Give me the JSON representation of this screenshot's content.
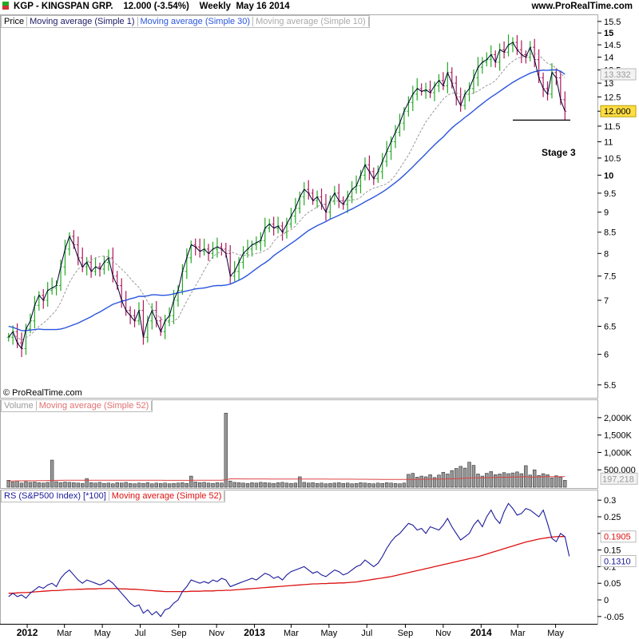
{
  "header": {
    "ticker": "KGP - KINGSPAN GRP.",
    "quote": "12.000 (-3.54%)",
    "period": "Weekly",
    "date": "May 16 2014",
    "site": "www.ProRealTime.com"
  },
  "watermark": "© ProRealTime.com",
  "colors": {
    "up": "#22aa22",
    "down": "#b0185a",
    "close_line": "#000033",
    "ma30": "#2a55dd",
    "ma10": "#999999",
    "rs": "#1a1a99",
    "rs_ma": "#dd1111",
    "volume_ma": "#dd4444",
    "price_flag": "#ffdd44"
  },
  "chart_data": [
    {
      "type": "line",
      "panel": "price",
      "legend": [
        "Price",
        "Moving average (Simple 1)",
        "Moving average (Simple 30)",
        "Moving average (Simple 10)"
      ],
      "yticks": [
        5.5,
        6,
        6.5,
        7,
        7.5,
        8,
        8.5,
        9,
        9.5,
        10,
        10.5,
        11,
        11.5,
        12,
        12.5,
        13,
        13.5,
        14,
        14.5,
        15,
        15.5
      ],
      "ytick_labels": [
        "5.5",
        "6",
        "6.5",
        "7",
        "7.5",
        "8",
        "8.5",
        "9",
        "9.5",
        "10",
        "10.5",
        "11",
        "11.5",
        "12",
        "12.5",
        "13",
        "13.5",
        "14",
        "14.5",
        "15",
        "15.5"
      ],
      "y_scale": "log",
      "ylim": [
        5.35,
        15.6
      ],
      "last_value": "12.000",
      "ma30_last": "13.332",
      "support_level": 11.7,
      "annotation": "Stage 3",
      "x_start": "2011-12-02",
      "x_step_days": 7,
      "close": [
        6.3,
        6.4,
        6.2,
        6.1,
        6.45,
        6.6,
        6.9,
        7.1,
        7.0,
        7.2,
        7.25,
        7.3,
        7.7,
        8.1,
        8.4,
        8.2,
        7.9,
        7.7,
        7.8,
        7.6,
        7.7,
        7.65,
        7.8,
        7.9,
        7.5,
        7.3,
        7.0,
        6.8,
        6.7,
        6.6,
        6.8,
        6.3,
        6.6,
        6.8,
        6.6,
        6.4,
        6.6,
        6.7,
        7.0,
        7.2,
        7.6,
        7.9,
        8.2,
        8.15,
        8.05,
        8.1,
        8.0,
        8.1,
        8.15,
        8.1,
        8.0,
        7.5,
        7.6,
        7.8,
        8.0,
        8.1,
        8.2,
        8.25,
        8.3,
        8.6,
        8.7,
        8.6,
        8.65,
        8.5,
        8.7,
        8.9,
        9.1,
        9.4,
        9.6,
        9.5,
        9.3,
        9.4,
        9.2,
        9.0,
        9.3,
        9.5,
        9.3,
        9.2,
        9.4,
        9.6,
        9.7,
        10.0,
        10.3,
        10.1,
        9.9,
        10.1,
        10.4,
        10.7,
        11.0,
        11.3,
        11.6,
        12.0,
        12.3,
        12.6,
        12.8,
        12.7,
        12.75,
        12.65,
        12.9,
        13.1,
        12.9,
        13.4,
        13.0,
        12.5,
        12.2,
        12.6,
        12.8,
        13.2,
        13.6,
        13.8,
        13.9,
        14.1,
        13.8,
        14.3,
        14.2,
        14.5,
        14.6,
        14.3,
        14.1,
        14.0,
        14.4,
        13.9,
        13.2,
        12.8,
        12.6,
        13.4,
        13.2,
        12.4,
        12.0
      ],
      "ma10": [
        6.3,
        6.35,
        6.3,
        6.25,
        6.29,
        6.34,
        6.41,
        6.5,
        6.56,
        6.63,
        6.72,
        6.81,
        6.96,
        7.16,
        7.36,
        7.52,
        7.65,
        7.73,
        7.81,
        7.85,
        7.9,
        7.93,
        7.94,
        7.92,
        7.83,
        7.74,
        7.65,
        7.56,
        7.45,
        7.35,
        7.26,
        7.12,
        6.97,
        6.83,
        6.74,
        6.64,
        6.6,
        6.57,
        6.6,
        6.65,
        6.82,
        6.98,
        7.14,
        7.29,
        7.45,
        7.62,
        7.79,
        7.93,
        8.0,
        8.05,
        8.09,
        8.05,
        8.0,
        7.97,
        7.96,
        7.96,
        7.98,
        8.0,
        8.02,
        8.07,
        8.12,
        8.28,
        8.39,
        8.44,
        8.51,
        8.56,
        8.65,
        8.77,
        8.9,
        9.0,
        9.06,
        9.14,
        9.2,
        9.23,
        9.27,
        9.28,
        9.29,
        9.3,
        9.3,
        9.32,
        9.33,
        9.39,
        9.5,
        9.58,
        9.64,
        9.67,
        9.71,
        9.76,
        9.86,
        10.0,
        10.19,
        10.39,
        10.59,
        10.84,
        11.12,
        11.38,
        11.64,
        11.84,
        12.04,
        12.23,
        12.42,
        12.56,
        12.63,
        12.65,
        12.59,
        12.58,
        12.59,
        12.64,
        12.71,
        12.81,
        12.91,
        12.98,
        13.09,
        13.3,
        13.5,
        13.7,
        13.84,
        13.95,
        14.0,
        14.04,
        14.13,
        14.15,
        14.09,
        13.91,
        13.76,
        13.68,
        13.57,
        13.37,
        13.2
      ],
      "ma30": [
        6.5,
        6.48,
        6.45,
        6.42,
        6.42,
        6.43,
        6.44,
        6.45,
        6.44,
        6.44,
        6.44,
        6.44,
        6.45,
        6.47,
        6.5,
        6.53,
        6.56,
        6.6,
        6.64,
        6.68,
        6.73,
        6.77,
        6.82,
        6.87,
        6.92,
        6.95,
        6.98,
        7.0,
        7.03,
        7.05,
        7.08,
        7.08,
        7.09,
        7.11,
        7.11,
        7.1,
        7.1,
        7.11,
        7.13,
        7.15,
        7.17,
        7.19,
        7.21,
        7.23,
        7.24,
        7.25,
        7.27,
        7.29,
        7.3,
        7.3,
        7.31,
        7.33,
        7.37,
        7.41,
        7.46,
        7.52,
        7.59,
        7.66,
        7.73,
        7.79,
        7.86,
        7.95,
        8.02,
        8.09,
        8.16,
        8.23,
        8.3,
        8.38,
        8.46,
        8.54,
        8.6,
        8.66,
        8.71,
        8.76,
        8.82,
        8.87,
        8.92,
        8.97,
        9.03,
        9.08,
        9.14,
        9.2,
        9.27,
        9.33,
        9.39,
        9.46,
        9.53,
        9.61,
        9.7,
        9.79,
        9.89,
        10.0,
        10.12,
        10.24,
        10.37,
        10.5,
        10.63,
        10.77,
        10.9,
        11.03,
        11.15,
        11.3,
        11.44,
        11.56,
        11.67,
        11.79,
        11.9,
        12.02,
        12.14,
        12.26,
        12.38,
        12.49,
        12.59,
        12.7,
        12.81,
        12.92,
        13.03,
        13.12,
        13.21,
        13.29,
        13.37,
        13.43,
        13.47,
        13.49,
        13.48,
        13.5,
        13.5,
        13.45,
        13.33
      ]
    },
    {
      "type": "bar",
      "panel": "volume",
      "legend": [
        "Volume",
        "Moving average (Simple 52)"
      ],
      "yticks": [
        500000,
        1000000,
        1500000,
        2000000
      ],
      "ytick_labels": [
        "500,000",
        "1,000K",
        "1,500K",
        "2,000K"
      ],
      "ylim": [
        0,
        2250000
      ],
      "last_value": "197,218",
      "values": [
        200000,
        150000,
        180000,
        120000,
        160000,
        140000,
        150000,
        130000,
        120000,
        140000,
        780000,
        160000,
        130000,
        150000,
        140000,
        130000,
        120000,
        110000,
        250000,
        130000,
        120000,
        140000,
        110000,
        120000,
        100000,
        130000,
        120000,
        140000,
        110000,
        100000,
        120000,
        110000,
        130000,
        100000,
        120000,
        110000,
        120000,
        100000,
        110000,
        120000,
        130000,
        110000,
        320000,
        150000,
        130000,
        140000,
        120000,
        110000,
        130000,
        120000,
        2130000,
        180000,
        140000,
        130000,
        120000,
        110000,
        130000,
        120000,
        140000,
        130000,
        120000,
        110000,
        130000,
        140000,
        120000,
        110000,
        120000,
        300000,
        140000,
        120000,
        130000,
        110000,
        120000,
        100000,
        110000,
        120000,
        130000,
        110000,
        120000,
        100000,
        110000,
        130000,
        120000,
        110000,
        100000,
        120000,
        110000,
        130000,
        120000,
        110000,
        100000,
        120000,
        370000,
        400000,
        290000,
        320000,
        300000,
        360000,
        280000,
        350000,
        430000,
        380000,
        480000,
        540000,
        600000,
        550000,
        720000,
        630000,
        380000,
        320000,
        400000,
        450000,
        360000,
        380000,
        420000,
        390000,
        410000,
        440000,
        390000,
        620000,
        350000,
        500000,
        340000,
        390000,
        360000,
        270000,
        330000,
        290000,
        200000
      ],
      "ma52": [
        180000,
        182000,
        183000,
        184000,
        185000,
        186000,
        187000,
        188000,
        190000,
        192000,
        195000,
        197000,
        198000,
        199000,
        200000,
        201000,
        201000,
        202000,
        203000,
        203000,
        203000,
        203000,
        202000,
        202000,
        202000,
        202000,
        201000,
        201000,
        201000,
        200000,
        200000,
        200000,
        200000,
        199000,
        199000,
        199000,
        198000,
        198000,
        198000,
        198000,
        197000,
        197000,
        198000,
        199000,
        199000,
        200000,
        200000,
        200000,
        200000,
        200000,
        215000,
        240000,
        240000,
        240000,
        239000,
        239000,
        239000,
        238000,
        238000,
        238000,
        237000,
        237000,
        237000,
        236000,
        236000,
        235000,
        235000,
        236000,
        236000,
        235000,
        235000,
        235000,
        234000,
        234000,
        233000,
        233000,
        232000,
        232000,
        231000,
        231000,
        230000,
        230000,
        229000,
        228000,
        228000,
        227000,
        226000,
        226000,
        225000,
        224000,
        223000,
        223000,
        224000,
        226000,
        227000,
        229000,
        230000,
        232000,
        233000,
        235000,
        238000,
        240000,
        243000,
        247000,
        252000,
        257000,
        263000,
        268000,
        270000,
        272000,
        275000,
        278000,
        281000,
        284000,
        287000,
        290000,
        293000,
        296000,
        299000,
        305000,
        290000,
        295000,
        298000,
        301000,
        304000,
        305000,
        306000,
        306000,
        305000
      ]
    },
    {
      "type": "line",
      "panel": "rs",
      "legend": [
        "RS (S&P500 Index) [*100]",
        "Moving average (Simple 52)"
      ],
      "yticks": [
        -0.05,
        0,
        0.05,
        0.1,
        0.15,
        0.2,
        0.25,
        0.3
      ],
      "ytick_labels": [
        "-0.05",
        "0",
        "0.05",
        "0.1",
        "0.15",
        "0.2",
        "0.25",
        "0.3"
      ],
      "ylim": [
        -0.06,
        0.31
      ],
      "rs_last": "0.1310",
      "ma_last": "0.1905",
      "rs": [
        0.01,
        0.02,
        0.01,
        0.015,
        0.005,
        0.02,
        0.03,
        0.04,
        0.035,
        0.045,
        0.05,
        0.04,
        0.065,
        0.08,
        0.09,
        0.075,
        0.06,
        0.05,
        0.06,
        0.055,
        0.05,
        0.045,
        0.05,
        0.06,
        0.05,
        0.035,
        0.02,
        0.005,
        -0.01,
        -0.02,
        -0.015,
        -0.04,
        -0.03,
        -0.045,
        -0.035,
        -0.05,
        -0.03,
        -0.025,
        -0.01,
        0.0,
        0.025,
        0.04,
        0.06,
        0.055,
        0.05,
        0.055,
        0.05,
        0.06,
        0.055,
        0.065,
        0.06,
        0.04,
        0.045,
        0.05,
        0.055,
        0.06,
        0.065,
        0.06,
        0.07,
        0.08,
        0.075,
        0.065,
        0.07,
        0.06,
        0.075,
        0.085,
        0.09,
        0.095,
        0.1,
        0.09,
        0.08,
        0.085,
        0.075,
        0.07,
        0.08,
        0.09,
        0.085,
        0.075,
        0.08,
        0.09,
        0.1,
        0.105,
        0.12,
        0.11,
        0.1,
        0.11,
        0.13,
        0.155,
        0.175,
        0.19,
        0.2,
        0.215,
        0.23,
        0.225,
        0.21,
        0.215,
        0.2,
        0.22,
        0.215,
        0.21,
        0.225,
        0.245,
        0.22,
        0.2,
        0.18,
        0.19,
        0.2,
        0.225,
        0.24,
        0.22,
        0.25,
        0.27,
        0.245,
        0.23,
        0.265,
        0.29,
        0.275,
        0.255,
        0.26,
        0.275,
        0.27,
        0.26,
        0.25,
        0.27,
        0.23,
        0.185,
        0.175,
        0.2,
        0.19,
        0.131
      ],
      "ma52": [
        0.02,
        0.02,
        0.021,
        0.022,
        0.022,
        0.023,
        0.024,
        0.025,
        0.026,
        0.027,
        0.028,
        0.028,
        0.029,
        0.03,
        0.031,
        0.031,
        0.032,
        0.032,
        0.033,
        0.033,
        0.033,
        0.034,
        0.034,
        0.034,
        0.034,
        0.034,
        0.033,
        0.033,
        0.032,
        0.032,
        0.031,
        0.03,
        0.029,
        0.028,
        0.027,
        0.026,
        0.025,
        0.025,
        0.025,
        0.025,
        0.025,
        0.025,
        0.026,
        0.026,
        0.026,
        0.027,
        0.027,
        0.027,
        0.028,
        0.028,
        0.029,
        0.029,
        0.03,
        0.031,
        0.032,
        0.033,
        0.034,
        0.035,
        0.036,
        0.037,
        0.038,
        0.039,
        0.04,
        0.041,
        0.042,
        0.043,
        0.044,
        0.045,
        0.046,
        0.047,
        0.048,
        0.048,
        0.049,
        0.049,
        0.05,
        0.05,
        0.051,
        0.051,
        0.052,
        0.053,
        0.054,
        0.056,
        0.058,
        0.06,
        0.062,
        0.064,
        0.066,
        0.068,
        0.07,
        0.073,
        0.076,
        0.079,
        0.082,
        0.085,
        0.088,
        0.091,
        0.094,
        0.097,
        0.1,
        0.103,
        0.106,
        0.109,
        0.112,
        0.115,
        0.118,
        0.121,
        0.124,
        0.127,
        0.13,
        0.134,
        0.138,
        0.142,
        0.146,
        0.15,
        0.154,
        0.158,
        0.162,
        0.166,
        0.17,
        0.174,
        0.177,
        0.18,
        0.183,
        0.185,
        0.187,
        0.189,
        0.19,
        0.1905,
        0.1905
      ]
    }
  ],
  "x_axis": {
    "labels": [
      "2012",
      "Mar",
      "May",
      "Jul",
      "Sep",
      "Nov",
      "2013",
      "Mar",
      "May",
      "Jul",
      "Sep",
      "Nov",
      "2014",
      "Mar",
      "May"
    ],
    "dates": [
      "2012-01-01",
      "2012-03-01",
      "2012-05-01",
      "2012-07-01",
      "2012-09-01",
      "2012-11-01",
      "2013-01-01",
      "2013-03-01",
      "2013-05-01",
      "2013-07-01",
      "2013-09-01",
      "2013-11-01",
      "2014-01-01",
      "2014-03-01",
      "2014-05-01"
    ],
    "bold": [
      "2012",
      "2013",
      "2014"
    ]
  }
}
